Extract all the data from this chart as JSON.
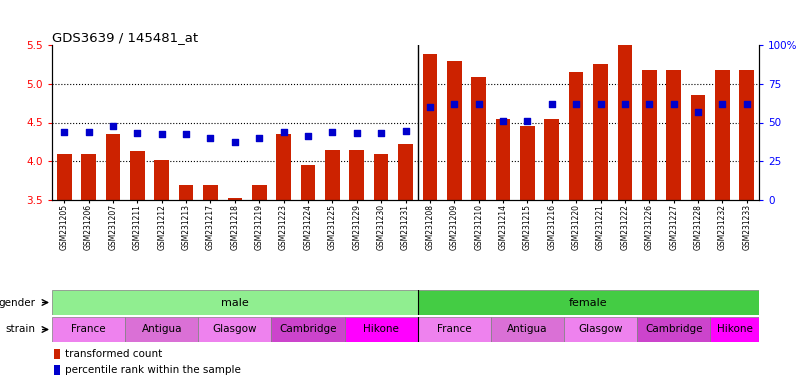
{
  "title": "GDS3639 / 145481_at",
  "samples": [
    "GSM231205",
    "GSM231206",
    "GSM231207",
    "GSM231211",
    "GSM231212",
    "GSM231213",
    "GSM231217",
    "GSM231218",
    "GSM231219",
    "GSM231223",
    "GSM231224",
    "GSM231225",
    "GSM231229",
    "GSM231230",
    "GSM231231",
    "GSM231208",
    "GSM231209",
    "GSM231210",
    "GSM231214",
    "GSM231215",
    "GSM231216",
    "GSM231220",
    "GSM231221",
    "GSM231222",
    "GSM231226",
    "GSM231227",
    "GSM231228",
    "GSM231232",
    "GSM231233"
  ],
  "bar_values": [
    4.1,
    4.1,
    4.35,
    4.13,
    4.01,
    3.7,
    3.7,
    3.52,
    3.7,
    4.35,
    3.95,
    4.15,
    4.15,
    4.1,
    4.22,
    5.38,
    5.3,
    5.09,
    4.55,
    4.45,
    4.55,
    5.15,
    5.25,
    5.51,
    5.18,
    5.18,
    4.85,
    5.18,
    5.18
  ],
  "percentile_values": [
    44.0,
    44.0,
    48.0,
    43.0,
    42.5,
    42.5,
    40.0,
    37.5,
    40.0,
    44.0,
    41.0,
    44.0,
    43.0,
    43.0,
    44.5,
    60.0,
    62.0,
    62.0,
    51.0,
    51.0,
    62.0,
    62.0,
    62.0,
    62.0,
    62.0,
    62.0,
    57.0,
    62.0,
    62.0
  ],
  "ylim_left": [
    3.5,
    5.5
  ],
  "ylim_right": [
    0,
    100
  ],
  "yticks_left": [
    3.5,
    4.0,
    4.5,
    5.0,
    5.5
  ],
  "yticks_right": [
    0,
    25,
    50,
    75,
    100
  ],
  "ytick_labels_right": [
    "0",
    "25",
    "50",
    "75",
    "100%"
  ],
  "gender_groups": [
    {
      "label": "male",
      "start": 0,
      "end": 15,
      "color": "#90EE90"
    },
    {
      "label": "female",
      "start": 15,
      "end": 29,
      "color": "#44CC44"
    }
  ],
  "strain_groups": [
    {
      "label": "France",
      "start": 0,
      "end": 3,
      "color": "#EE82EE"
    },
    {
      "label": "Antigua",
      "start": 3,
      "end": 6,
      "color": "#DA70D6"
    },
    {
      "label": "Glasgow",
      "start": 6,
      "end": 9,
      "color": "#EE82EE"
    },
    {
      "label": "Cambridge",
      "start": 9,
      "end": 12,
      "color": "#CC44CC"
    },
    {
      "label": "Hikone",
      "start": 12,
      "end": 15,
      "color": "#FF00FF"
    },
    {
      "label": "France",
      "start": 15,
      "end": 18,
      "color": "#EE82EE"
    },
    {
      "label": "Antigua",
      "start": 18,
      "end": 21,
      "color": "#DA70D6"
    },
    {
      "label": "Glasgow",
      "start": 21,
      "end": 24,
      "color": "#EE82EE"
    },
    {
      "label": "Cambridge",
      "start": 24,
      "end": 27,
      "color": "#CC44CC"
    },
    {
      "label": "Hikone",
      "start": 27,
      "end": 29,
      "color": "#FF00FF"
    }
  ],
  "bar_color": "#CC2200",
  "dot_color": "#0000CC",
  "gender_label": "gender",
  "strain_label": "strain",
  "legend_bar": "transformed count",
  "legend_dot": "percentile rank within the sample",
  "background_color": "#FFFFFF"
}
